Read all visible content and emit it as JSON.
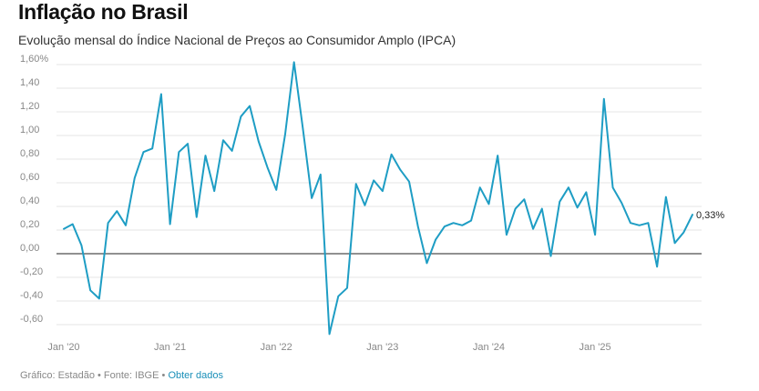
{
  "title": "Inflação no Brasil",
  "subtitle": "Evolução mensal do Índice Nacional de Preços ao Consumidor Amplo (IPCA)",
  "footer": {
    "credit": "Gráfico: Estadão",
    "separator": "•",
    "source": "Fonte: IBGE",
    "link": "Obter dados"
  },
  "colors": {
    "line": "#1e9dc4",
    "grid": "#e6e6e6",
    "zero": "#222222",
    "link": "#1a8fb8"
  },
  "chart_data": {
    "type": "line",
    "title": "Inflação no Brasil",
    "subtitle": "Evolução mensal do Índice Nacional de Preços ao Consumidor Amplo (IPCA)",
    "xlabel": "",
    "ylabel": "",
    "ylim": [
      -0.7,
      1.65
    ],
    "yticks": [
      1.6,
      1.4,
      1.2,
      1.0,
      0.8,
      0.6,
      0.4,
      0.2,
      0.0,
      -0.2,
      -0.4,
      -0.6
    ],
    "ytick_labels": [
      "1,60%",
      "1,40",
      "1,20",
      "1,00",
      "0,80",
      "0,60",
      "0,40",
      "0,20",
      "0,00",
      "-0,20",
      "-0,40",
      "-0,60"
    ],
    "xtick_labels": [
      "Jan '20",
      "Jan '21",
      "Jan '22",
      "Jan '23",
      "Jan '24",
      "Jan '25"
    ],
    "xtick_months": [
      "2020-01",
      "2021-01",
      "2022-01",
      "2023-01",
      "2024-01",
      "2025-01"
    ],
    "grid": true,
    "zero_line": true,
    "end_label": "0,33%",
    "x": [
      "2020-01",
      "2020-02",
      "2020-03",
      "2020-04",
      "2020-05",
      "2020-06",
      "2020-07",
      "2020-08",
      "2020-09",
      "2020-10",
      "2020-11",
      "2020-12",
      "2021-01",
      "2021-02",
      "2021-03",
      "2021-04",
      "2021-05",
      "2021-06",
      "2021-07",
      "2021-08",
      "2021-09",
      "2021-10",
      "2021-11",
      "2021-12",
      "2022-01",
      "2022-02",
      "2022-03",
      "2022-04",
      "2022-05",
      "2022-06",
      "2022-07",
      "2022-08",
      "2022-09",
      "2022-10",
      "2022-11",
      "2022-12",
      "2023-01",
      "2023-02",
      "2023-03",
      "2023-04",
      "2023-05",
      "2023-06",
      "2023-07",
      "2023-08",
      "2023-09",
      "2023-10",
      "2023-11",
      "2023-12",
      "2024-01",
      "2024-02",
      "2024-03",
      "2024-04",
      "2024-05",
      "2024-06",
      "2024-07",
      "2024-08",
      "2024-09",
      "2024-10",
      "2024-11",
      "2024-12",
      "2025-01",
      "2025-02",
      "2025-03",
      "2025-04",
      "2025-05",
      "2025-06",
      "2025-07",
      "2025-08",
      "2025-09",
      "2025-10",
      "2025-11",
      "2025-12"
    ],
    "series": [
      {
        "values": [
          0.21,
          0.25,
          0.07,
          -0.31,
          -0.38,
          0.26,
          0.36,
          0.24,
          0.64,
          0.86,
          0.89,
          1.35,
          0.25,
          0.86,
          0.93,
          0.31,
          0.83,
          0.53,
          0.96,
          0.87,
          1.16,
          1.25,
          0.95,
          0.73,
          0.54,
          1.01,
          1.62,
          1.06,
          0.47,
          0.67,
          -0.68,
          -0.36,
          -0.29,
          0.59,
          0.41,
          0.62,
          0.53,
          0.84,
          0.71,
          0.61,
          0.23,
          -0.08,
          0.12,
          0.23,
          0.26,
          0.24,
          0.28,
          0.56,
          0.42,
          0.83,
          0.16,
          0.38,
          0.46,
          0.21,
          0.38,
          -0.02,
          0.44,
          0.56,
          0.39,
          0.52,
          0.16,
          1.31,
          0.56,
          0.43,
          0.26,
          0.24,
          0.26,
          -0.11,
          0.48,
          0.09,
          0.18,
          0.33
        ]
      }
    ]
  }
}
